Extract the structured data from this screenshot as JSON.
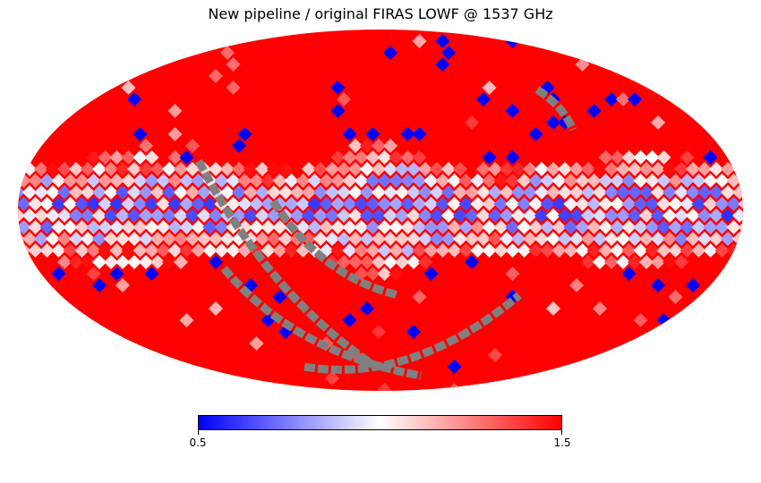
{
  "title": "New pipeline / original FIRAS LOWF @ 1537 GHz",
  "colorbar": {
    "min_label": "0.5",
    "max_label": "1.5",
    "min_value": 0.5,
    "max_value": 1.5,
    "colormap": "bwr",
    "colors": {
      "low": "#0000ff",
      "mid": "#ffffff",
      "high": "#ff0000",
      "masked": "#808080"
    }
  },
  "map": {
    "projection": "mollweide",
    "description_value_range": [
      0.5,
      1.5
    ]
  }
}
